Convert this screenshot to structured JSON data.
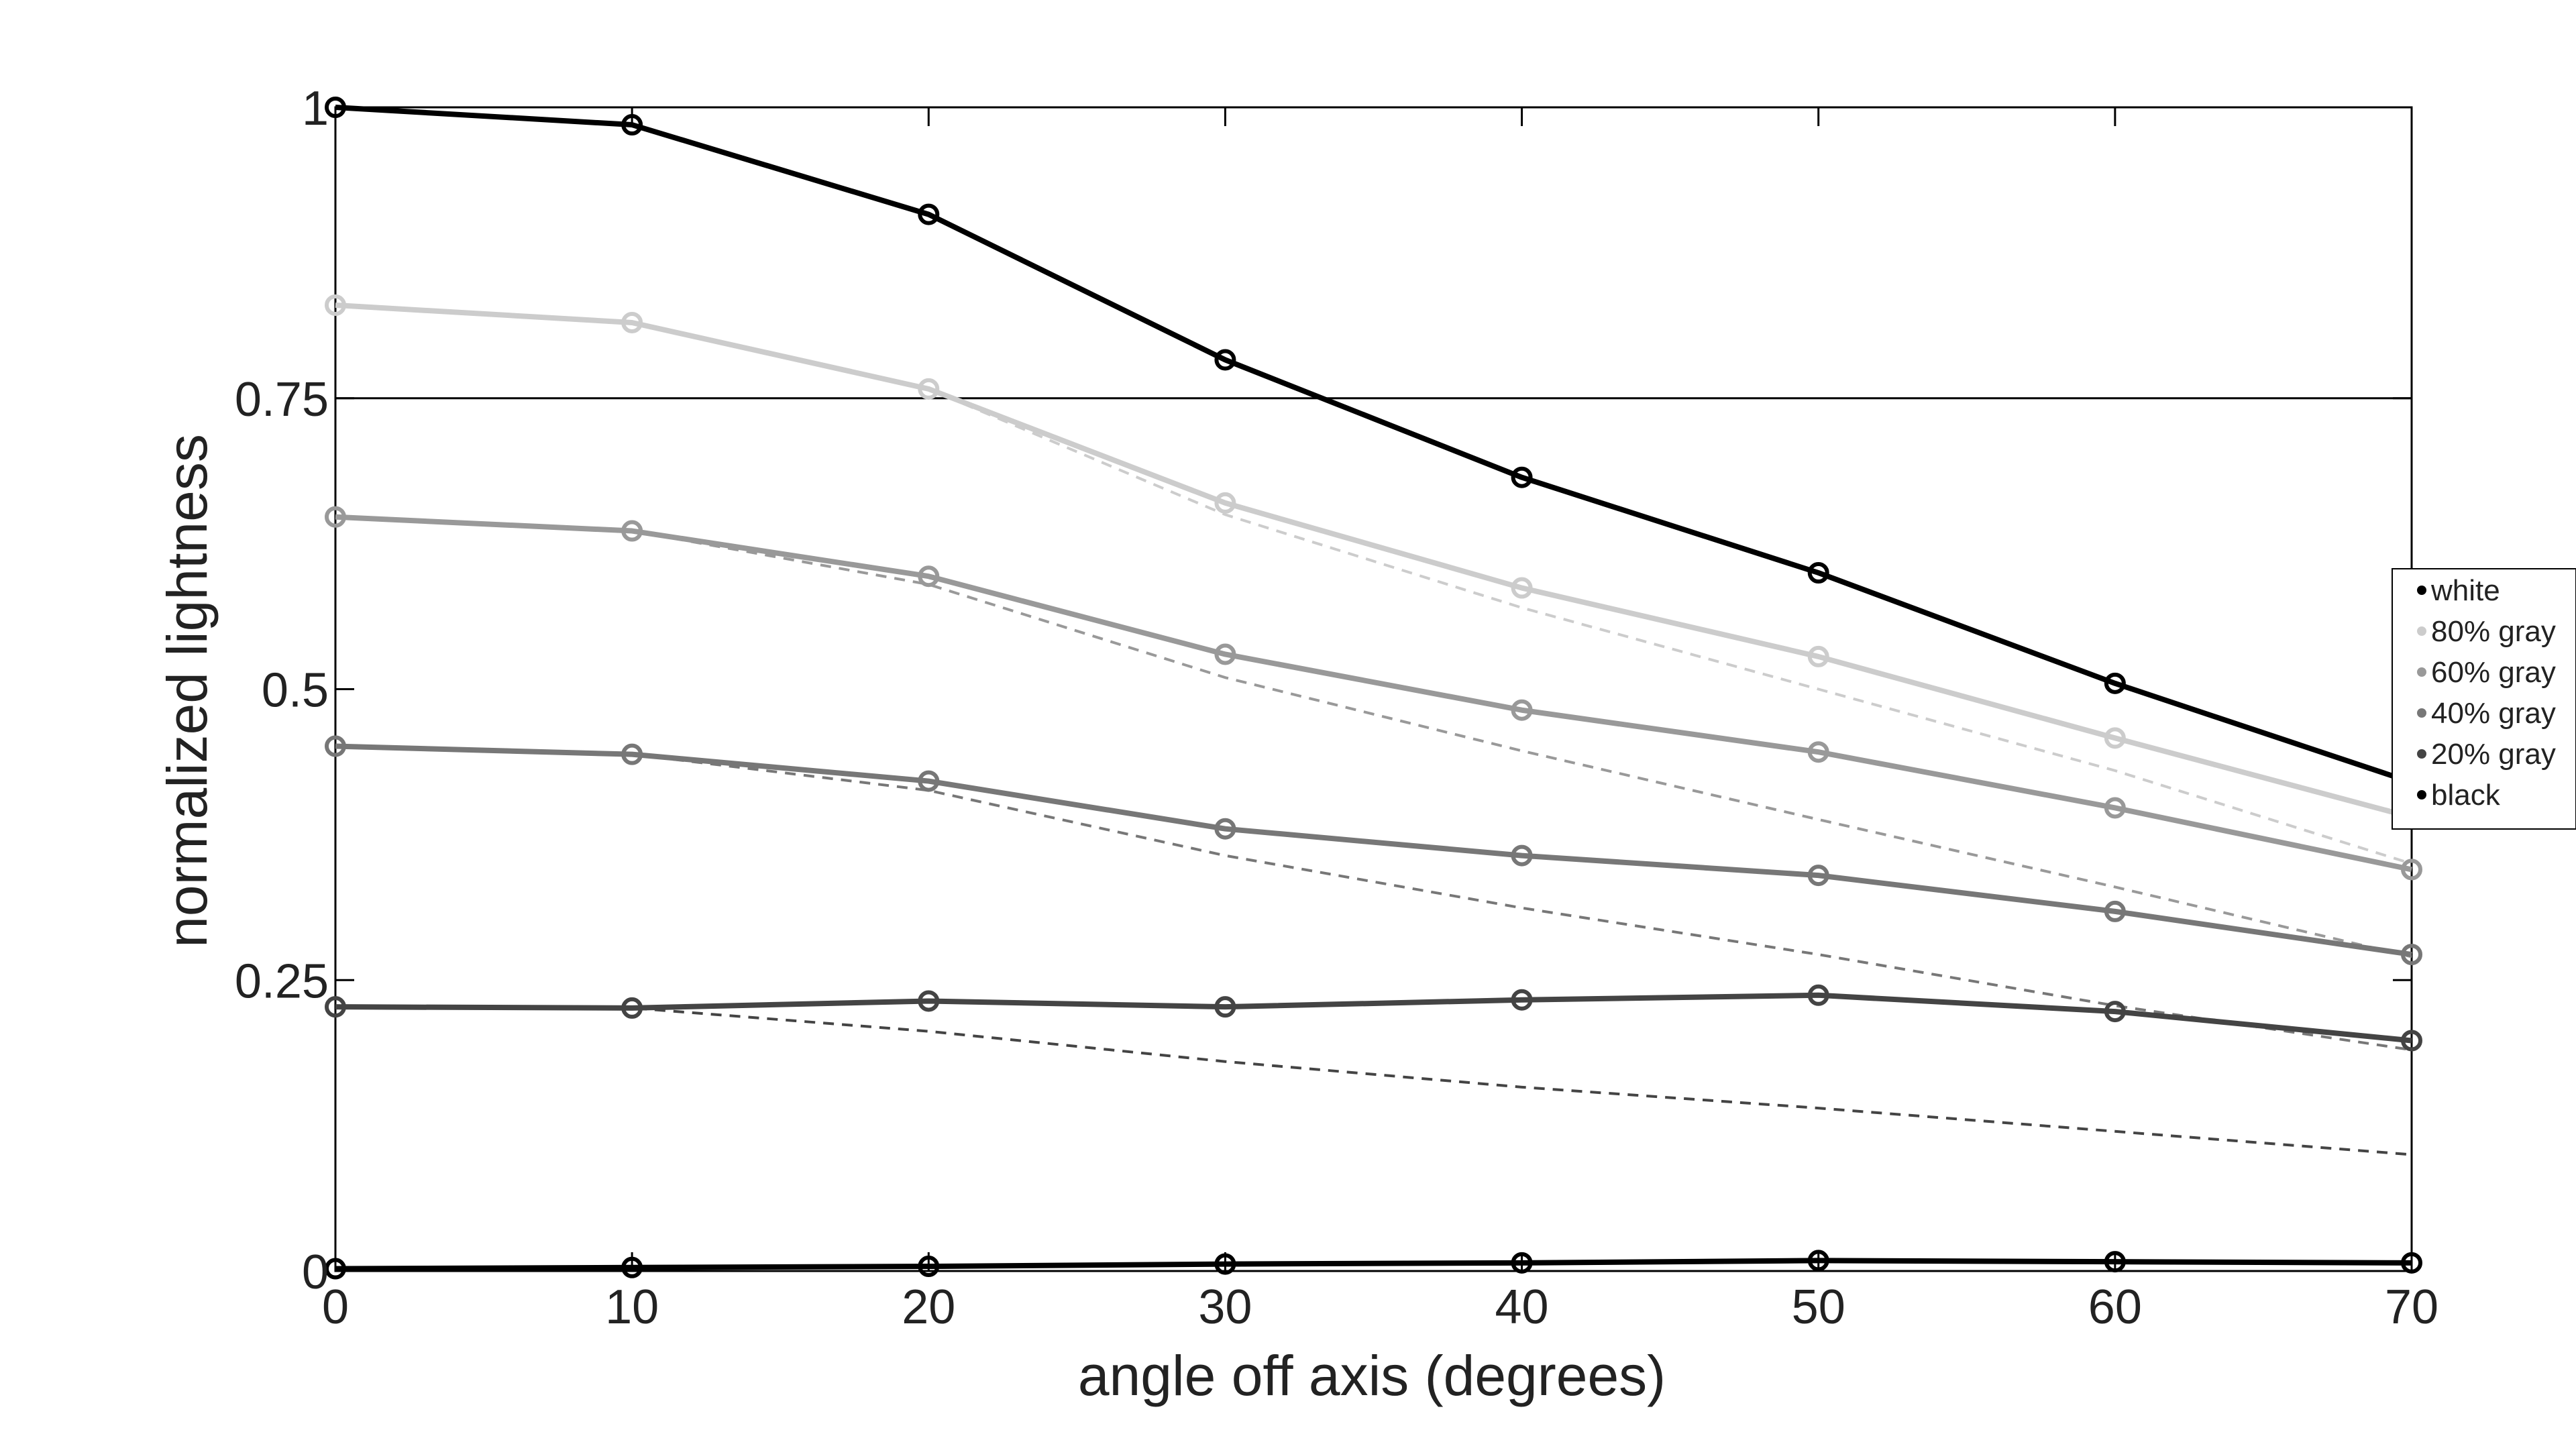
{
  "chart_data": {
    "type": "line",
    "title": "",
    "xlabel": "angle off axis (degrees)",
    "ylabel": "normalized lightness",
    "xlim": [
      0,
      70
    ],
    "ylim": [
      0,
      1
    ],
    "x_ticks": [
      0,
      10,
      20,
      30,
      40,
      50,
      60,
      70
    ],
    "x_tick_labels": [
      "0",
      "10",
      "20",
      "30",
      "40",
      "50",
      "60",
      "70"
    ],
    "y_ticks": [
      0,
      0.25,
      0.5,
      0.75,
      1
    ],
    "y_tick_labels": [
      "0",
      "0.25",
      "0.5",
      "0.75",
      "1"
    ],
    "grid": false,
    "legend_position": "right",
    "x": [
      0,
      10,
      20,
      30,
      40,
      50,
      60,
      70
    ],
    "series": [
      {
        "name": "white",
        "color": "#000000",
        "values": [
          1.0,
          0.985,
          0.908,
          0.783,
          0.682,
          0.6,
          0.505,
          0.42
        ]
      },
      {
        "name": "80% gray",
        "color": "#cccccc",
        "values": [
          0.83,
          0.815,
          0.758,
          0.66,
          0.587,
          0.528,
          0.458,
          0.39
        ]
      },
      {
        "name": "60% gray",
        "color": "#999999",
        "values": [
          0.648,
          0.636,
          0.597,
          0.53,
          0.482,
          0.446,
          0.398,
          0.345
        ]
      },
      {
        "name": "40% gray",
        "color": "#777777",
        "values": [
          0.451,
          0.444,
          0.421,
          0.38,
          0.357,
          0.34,
          0.309,
          0.272
        ]
      },
      {
        "name": "20% gray",
        "color": "#444444",
        "values": [
          0.227,
          0.226,
          0.232,
          0.227,
          0.233,
          0.237,
          0.223,
          0.198
        ]
      },
      {
        "name": "black",
        "color": "#000000",
        "values": [
          0.002,
          0.003,
          0.004,
          0.006,
          0.007,
          0.009,
          0.008,
          0.007
        ]
      }
    ],
    "reference_lines": [
      {
        "color": "#cccccc",
        "values": [
          0.83,
          0.815,
          0.758,
          0.65,
          0.57,
          0.5,
          0.43,
          0.35
        ]
      },
      {
        "color": "#999999",
        "values": [
          0.648,
          0.636,
          0.59,
          0.51,
          0.447,
          0.388,
          0.33,
          0.27
        ]
      },
      {
        "color": "#777777",
        "values": [
          0.451,
          0.444,
          0.413,
          0.357,
          0.312,
          0.272,
          0.228,
          0.19
        ]
      },
      {
        "color": "#444444",
        "values": [
          0.227,
          0.226,
          0.206,
          0.18,
          0.158,
          0.14,
          0.12,
          0.1
        ]
      }
    ],
    "threshold_line": {
      "y": 0.75,
      "color": "#000000"
    }
  }
}
